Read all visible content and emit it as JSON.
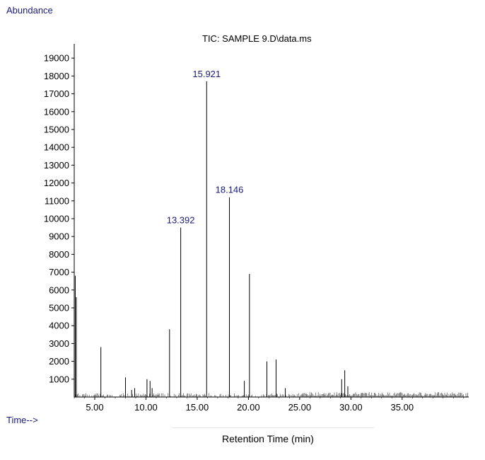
{
  "chart_data": {
    "type": "line",
    "title": "TIC: SAMPLE 9.D\\data.ms",
    "ylabel": "Abundance",
    "xlabel_prefix": "Time-->",
    "xlabel": "Retention Time (min)",
    "xlim": [
      3.0,
      41.5
    ],
    "ylim": [
      0,
      19800
    ],
    "yticks": [
      1000,
      2000,
      3000,
      4000,
      5000,
      6000,
      7000,
      8000,
      9000,
      10000,
      11000,
      12000,
      13000,
      14000,
      15000,
      16000,
      17000,
      18000,
      19000
    ],
    "xticks": [
      5.0,
      10.0,
      15.0,
      20.0,
      25.0,
      30.0,
      35.0
    ],
    "xtick_labels": [
      "5.00",
      "10.00",
      "15.00",
      "20.00",
      "25.00",
      "30.00",
      "35.00"
    ],
    "line_color": "#000000",
    "annotation_color": "#1a1a7a",
    "annotations": [
      {
        "label": "13.392",
        "x": 13.392,
        "y": 9500
      },
      {
        "label": "15.921",
        "x": 15.921,
        "y": 17700
      },
      {
        "label": "18.146",
        "x": 18.146,
        "y": 11200
      }
    ],
    "peaks": [
      {
        "x": 3.1,
        "y": 6800
      },
      {
        "x": 3.2,
        "y": 5600
      },
      {
        "x": 5.6,
        "y": 2800
      },
      {
        "x": 8.0,
        "y": 1100
      },
      {
        "x": 8.6,
        "y": 400
      },
      {
        "x": 8.9,
        "y": 500
      },
      {
        "x": 10.1,
        "y": 1000
      },
      {
        "x": 10.4,
        "y": 900
      },
      {
        "x": 10.6,
        "y": 500
      },
      {
        "x": 12.3,
        "y": 3800
      },
      {
        "x": 13.392,
        "y": 9500
      },
      {
        "x": 15.921,
        "y": 17700
      },
      {
        "x": 18.146,
        "y": 11200
      },
      {
        "x": 19.6,
        "y": 900
      },
      {
        "x": 20.1,
        "y": 6900
      },
      {
        "x": 21.8,
        "y": 2000
      },
      {
        "x": 22.7,
        "y": 2100
      },
      {
        "x": 23.6,
        "y": 500
      },
      {
        "x": 29.1,
        "y": 1000
      },
      {
        "x": 29.4,
        "y": 1500
      },
      {
        "x": 29.7,
        "y": 600
      }
    ]
  }
}
